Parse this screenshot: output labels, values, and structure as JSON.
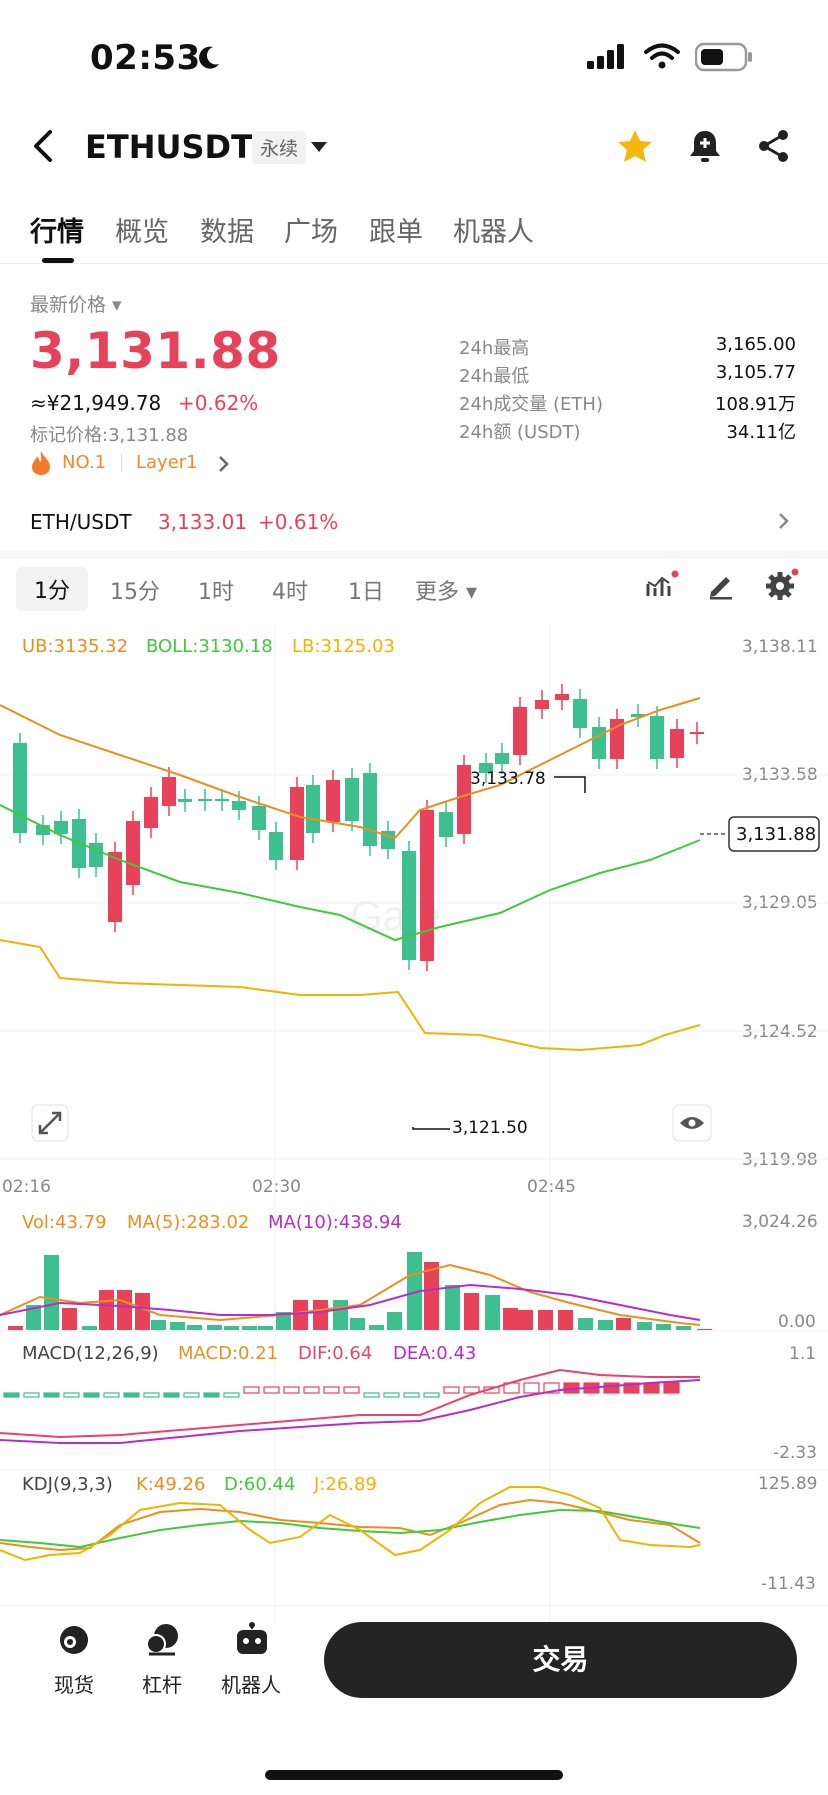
{
  "status": {
    "time": "02:53"
  },
  "header": {
    "pair": "ETHUSDT",
    "badge": "永续"
  },
  "tabs": [
    "行情",
    "概览",
    "数据",
    "广场",
    "跟单",
    "机器人"
  ],
  "price": {
    "label": "最新价格",
    "value": "3,131.88",
    "cny": "≈¥21,949.78",
    "change": "+0.62%",
    "mark_label": "标记价格:",
    "mark_value": "3,131.88",
    "rank": "NO.1",
    "sector": "Layer1"
  },
  "stats": [
    {
      "label": "24h最高",
      "value": "3,165.00"
    },
    {
      "label": "24h最低",
      "value": "3,105.77"
    },
    {
      "label": "24h成交量 (ETH)",
      "value": "108.91万"
    },
    {
      "label": "24h额 (USDT)",
      "value": "34.11亿"
    }
  ],
  "spot": {
    "pair": "ETH/USDT",
    "price": "3,133.01",
    "change": "+0.61%"
  },
  "intervals": [
    "1分",
    "15分",
    "1时",
    "4时",
    "1日",
    "更多"
  ],
  "boll": {
    "ub": "UB:3135.32",
    "boll": "BOLL:3130.18",
    "lb": "LB:3125.03"
  },
  "price_axis": [
    "3,138.11",
    "3,133.58",
    "3,129.05",
    "3,124.52",
    "3,119.98"
  ],
  "current_price_tag": "3,131.88",
  "high_marker": "3,133.78",
  "low_marker": "3,121.50",
  "time_axis": [
    "02:16",
    "02:30",
    "02:45"
  ],
  "volume": {
    "vol": "Vol:43.79",
    "ma5": "MA(5):283.02",
    "ma10": "MA(10):438.94",
    "axis_top": "3,024.26",
    "axis_bottom": "0.00"
  },
  "macd": {
    "title": "MACD(12,26,9)",
    "macd": "MACD:0.21",
    "dif": "DIF:0.64",
    "dea": "DEA:0.43",
    "axis_top": "1.1",
    "axis_bottom": "-2.33"
  },
  "kdj": {
    "title": "KDJ(9,3,3)",
    "k": "K:49.26",
    "d": "D:60.44",
    "j": "J:26.89",
    "axis_top": "125.89",
    "axis_bottom": "-11.43"
  },
  "bottom_nav": {
    "spot": "现货",
    "margin": "杠杆",
    "bot": "机器人",
    "trade": "交易"
  },
  "colors": {
    "up": "#e8425a",
    "down": "#3dbf8f",
    "ub": "#e8901e",
    "boll": "#40c93a",
    "lb": "#f0b400",
    "ma10": "#b52ec8"
  }
}
